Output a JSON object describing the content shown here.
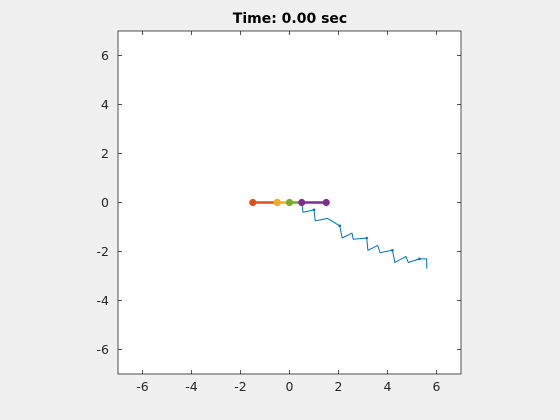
{
  "chart_data": {
    "type": "line",
    "title": "Time: 0.00 sec",
    "xlabel": "",
    "ylabel": "",
    "xlim": [
      -7,
      7
    ],
    "ylim": [
      -7,
      7
    ],
    "xticks": [
      -6,
      -4,
      -2,
      0,
      2,
      4,
      6
    ],
    "yticks": [
      -6,
      -4,
      -2,
      0,
      2,
      4,
      6
    ],
    "xtick_labels": [
      "-6",
      "-4",
      "-2",
      "0",
      "2",
      "4",
      "6"
    ],
    "ytick_labels": [
      "6",
      "4",
      "2",
      "0",
      "-2",
      "-4",
      "-6"
    ],
    "grid": false,
    "legend": "none",
    "series": [
      {
        "color": "#0072bd",
        "style": "thin-line-with-dots",
        "x": [
          0.5,
          0.55,
          1.0,
          1.05,
          1.55,
          2.05,
          2.15,
          2.55,
          2.6,
          3.15,
          3.2,
          3.6,
          3.7,
          4.2,
          4.3,
          4.75,
          4.85,
          5.3,
          5.35,
          5.6,
          5.6
        ],
        "y": [
          0,
          -0.4,
          -0.3,
          -0.75,
          -0.65,
          -0.95,
          -1.45,
          -1.25,
          -1.5,
          -1.45,
          -1.95,
          -1.75,
          -2.05,
          -1.95,
          -2.45,
          -2.2,
          -2.45,
          -2.3,
          -2.3,
          -2.3,
          -2.7
        ],
        "markers_x": [
          0.5,
          1.0,
          2.05,
          3.15,
          4.2,
          5.3
        ],
        "markers_y": [
          0,
          -0.3,
          -0.95,
          -1.45,
          -1.95,
          -2.3
        ]
      },
      {
        "color": "#d95319",
        "style": "thick-line-with-markers",
        "x": [
          -1.5,
          -0.5
        ],
        "y": [
          0,
          0
        ]
      },
      {
        "color": "#edb120",
        "style": "thick-line-with-markers",
        "x": [
          -0.5,
          0
        ],
        "y": [
          0,
          0
        ]
      },
      {
        "color": "#77ac30",
        "style": "thick-line-with-markers",
        "x": [
          0,
          0.5
        ],
        "y": [
          0,
          0
        ]
      },
      {
        "color": "#7e2f8e",
        "style": "thick-line-with-markers",
        "x": [
          0.5,
          1.5
        ],
        "y": [
          0,
          0
        ]
      }
    ]
  }
}
